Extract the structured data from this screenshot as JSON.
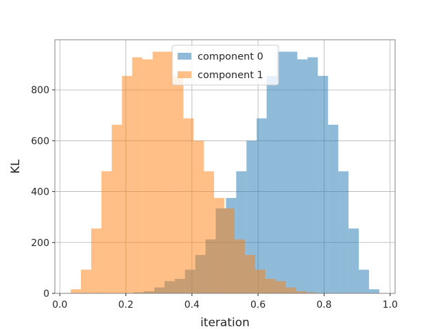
{
  "chart_data": {
    "type": "histogram",
    "title": "",
    "xlabel": "iteration",
    "ylabel": "KL",
    "xlim": [
      -0.015,
      1.015
    ],
    "ylim": [
      0,
      997
    ],
    "xticks": [
      0.0,
      0.2,
      0.4,
      0.6,
      0.8,
      1.0
    ],
    "xtick_labels": [
      "0.0",
      "0.2",
      "0.4",
      "0.6",
      "0.8",
      "1.0"
    ],
    "yticks": [
      0,
      200,
      400,
      600,
      800
    ],
    "ytick_labels": [
      "0",
      "200",
      "400",
      "600",
      "800"
    ],
    "grid": true,
    "legend_position": "top-center",
    "series": [
      {
        "name": "component 0",
        "color": "#1f77b4",
        "alpha": 0.5,
        "bin_edges": [
          0.163,
          0.193,
          0.224,
          0.255,
          0.286,
          0.317,
          0.348,
          0.379,
          0.41,
          0.441,
          0.472,
          0.503,
          0.534,
          0.565,
          0.596,
          0.626,
          0.657,
          0.688,
          0.719,
          0.75,
          0.781,
          0.812,
          0.843,
          0.874,
          0.905,
          0.936,
          0.967
        ],
        "counts": [
          1,
          1,
          4,
          8,
          23,
          48,
          57,
          93,
          151,
          212,
          334,
          375,
          480,
          600,
          688,
          855,
          950,
          950,
          920,
          928,
          855,
          663,
          480,
          255,
          93,
          16
        ]
      },
      {
        "name": "component 1",
        "color": "#ff7f0e",
        "alpha": 0.5,
        "bin_edges": [
          0.033,
          0.064,
          0.095,
          0.126,
          0.157,
          0.188,
          0.219,
          0.25,
          0.281,
          0.312,
          0.343,
          0.374,
          0.405,
          0.436,
          0.467,
          0.498,
          0.529,
          0.56,
          0.591,
          0.622,
          0.653,
          0.684,
          0.715,
          0.746,
          0.777,
          0.808,
          0.839
        ],
        "counts": [
          16,
          93,
          255,
          480,
          663,
          855,
          928,
          920,
          950,
          950,
          855,
          688,
          600,
          480,
          375,
          334,
          212,
          151,
          93,
          57,
          48,
          23,
          8,
          4,
          1,
          1
        ]
      }
    ]
  }
}
